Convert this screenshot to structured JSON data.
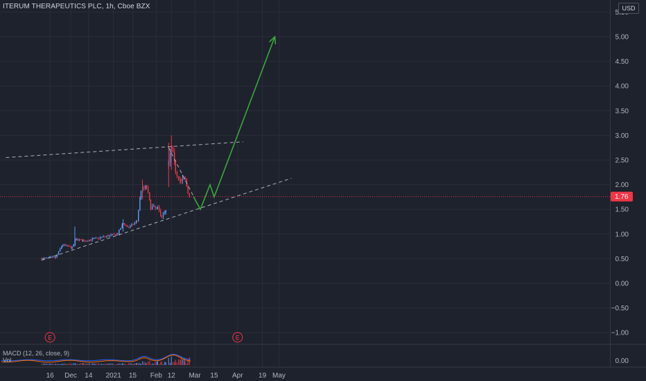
{
  "header": {
    "symbol_title": "ITERUM THERAPEUTICS PLC, 1h, Cboe BZX",
    "currency": "USD"
  },
  "indicators": {
    "macd_label": "MACD (12, 26, close, 9)",
    "vol_label": "Vol",
    "macd_axis_label": "0.00"
  },
  "colors": {
    "background": "#1e222d",
    "grid": "#2a2e39",
    "up": "#5b9cf6",
    "down": "#f23645",
    "trend_line": "#d1d4dc",
    "projection": "#3aa83a",
    "price_line": "#f23645"
  },
  "chart_data": {
    "type": "candlestick",
    "title": "ITERUM THERAPEUTICS PLC, 1h, Cboe BZX",
    "y_ticks": [
      "5.50",
      "5.00",
      "4.50",
      "4.00",
      "3.50",
      "3.00",
      "2.50",
      "2.00",
      "1.50",
      "1.00",
      "0.50",
      "0.00",
      "−0.50",
      "−1.00"
    ],
    "x_ticks": [
      "16",
      "Dec",
      "14",
      "2021",
      "15",
      "Feb",
      "12",
      "Mar",
      "15",
      "Apr",
      "19",
      "May"
    ],
    "ylim": [
      -1.0,
      5.5
    ],
    "last_price": "1.76",
    "event_markers": [
      {
        "label": "E",
        "date": "2020-11-16"
      },
      {
        "label": "E",
        "date": "2021-04-01"
      }
    ],
    "price_series": [
      {
        "date": "2020-11-10",
        "close": 0.5
      },
      {
        "date": "2020-11-20",
        "close": 0.52
      },
      {
        "date": "2020-11-25",
        "close": 0.78
      },
      {
        "date": "2020-12-02",
        "close": 0.72
      },
      {
        "date": "2020-12-05",
        "close": 0.9
      },
      {
        "date": "2020-12-10",
        "close": 0.86
      },
      {
        "date": "2020-12-18",
        "close": 0.9
      },
      {
        "date": "2020-12-28",
        "close": 0.96
      },
      {
        "date": "2021-01-04",
        "close": 1.0
      },
      {
        "date": "2021-01-08",
        "close": 1.22
      },
      {
        "date": "2021-01-12",
        "close": 1.13
      },
      {
        "date": "2021-01-18",
        "close": 1.26
      },
      {
        "date": "2021-01-21",
        "close": 1.9
      },
      {
        "date": "2021-01-25",
        "close": 1.95
      },
      {
        "date": "2021-01-28",
        "close": 1.55
      },
      {
        "date": "2021-02-02",
        "close": 1.5
      },
      {
        "date": "2021-02-05",
        "close": 1.38
      },
      {
        "date": "2021-02-08",
        "close": 1.45
      },
      {
        "date": "2021-02-10",
        "close": 2.4
      },
      {
        "date": "2021-02-12",
        "close": 2.75
      },
      {
        "date": "2021-02-15",
        "close": 2.3
      },
      {
        "date": "2021-02-19",
        "close": 2.05
      },
      {
        "date": "2021-02-22",
        "close": 2.1
      },
      {
        "date": "2021-02-24",
        "close": 1.85
      },
      {
        "date": "2021-02-26",
        "close": 1.76
      }
    ],
    "trend_lines": [
      {
        "from": {
          "date": "2020-10-15",
          "value": 2.55
        },
        "to": {
          "date": "2021-04-05",
          "value": 2.87
        }
      },
      {
        "from": {
          "date": "2020-11-10",
          "value": 0.47
        },
        "to": {
          "date": "2021-05-10",
          "value": 2.13
        }
      },
      {
        "from": {
          "date": "2021-02-10",
          "value": 2.75
        },
        "to": {
          "date": "2021-03-03",
          "value": 1.6
        }
      }
    ],
    "projection_path": [
      {
        "date": "2021-02-28",
        "value": 1.76
      },
      {
        "date": "2021-03-05",
        "value": 1.5
      },
      {
        "date": "2021-03-12",
        "value": 2.0
      },
      {
        "date": "2021-03-15",
        "value": 1.75
      },
      {
        "date": "2021-04-28",
        "value": 5.0
      }
    ]
  }
}
